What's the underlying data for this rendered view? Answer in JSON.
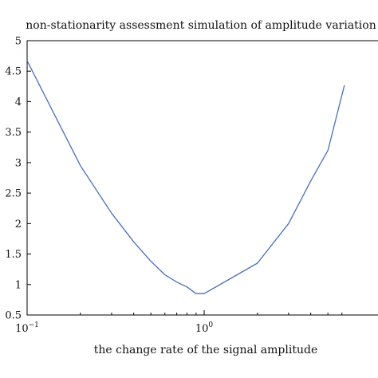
{
  "chart_data": {
    "type": "line",
    "title": "non-stationarity assessment simulation of amplitude variation",
    "xlabel": "the change rate of the signal amplitude",
    "ylabel": "",
    "x_scale": "log",
    "xlim": [
      0.1,
      6.2
    ],
    "ylim": [
      0.5,
      5
    ],
    "grid": false,
    "x_ticks": [
      {
        "value": 0.1,
        "base": "10",
        "exp": "−1"
      },
      {
        "value": 1,
        "base": "10",
        "exp": "0"
      }
    ],
    "y_ticks": [
      {
        "value": 0.5,
        "label": "0.5"
      },
      {
        "value": 1,
        "label": "1"
      },
      {
        "value": 1.5,
        "label": "1.5"
      },
      {
        "value": 2,
        "label": "2"
      },
      {
        "value": 2.5,
        "label": "2.5"
      },
      {
        "value": 3,
        "label": "3"
      },
      {
        "value": 3.5,
        "label": "3.5"
      },
      {
        "value": 4,
        "label": "4"
      },
      {
        "value": 4.5,
        "label": "4.5"
      },
      {
        "value": 5,
        "label": "5"
      }
    ],
    "series": [
      {
        "color": "#4a6fb5",
        "x": [
          0.1,
          0.2,
          0.3,
          0.4,
          0.5,
          0.6,
          0.7,
          0.8,
          0.9,
          1.0,
          2.0,
          3.0,
          4.0,
          5.0,
          6.2
        ],
        "y": [
          4.67,
          2.95,
          2.17,
          1.7,
          1.38,
          1.16,
          1.04,
          0.96,
          0.85,
          0.85,
          1.35,
          2.0,
          2.7,
          3.2,
          4.27
        ]
      }
    ]
  }
}
